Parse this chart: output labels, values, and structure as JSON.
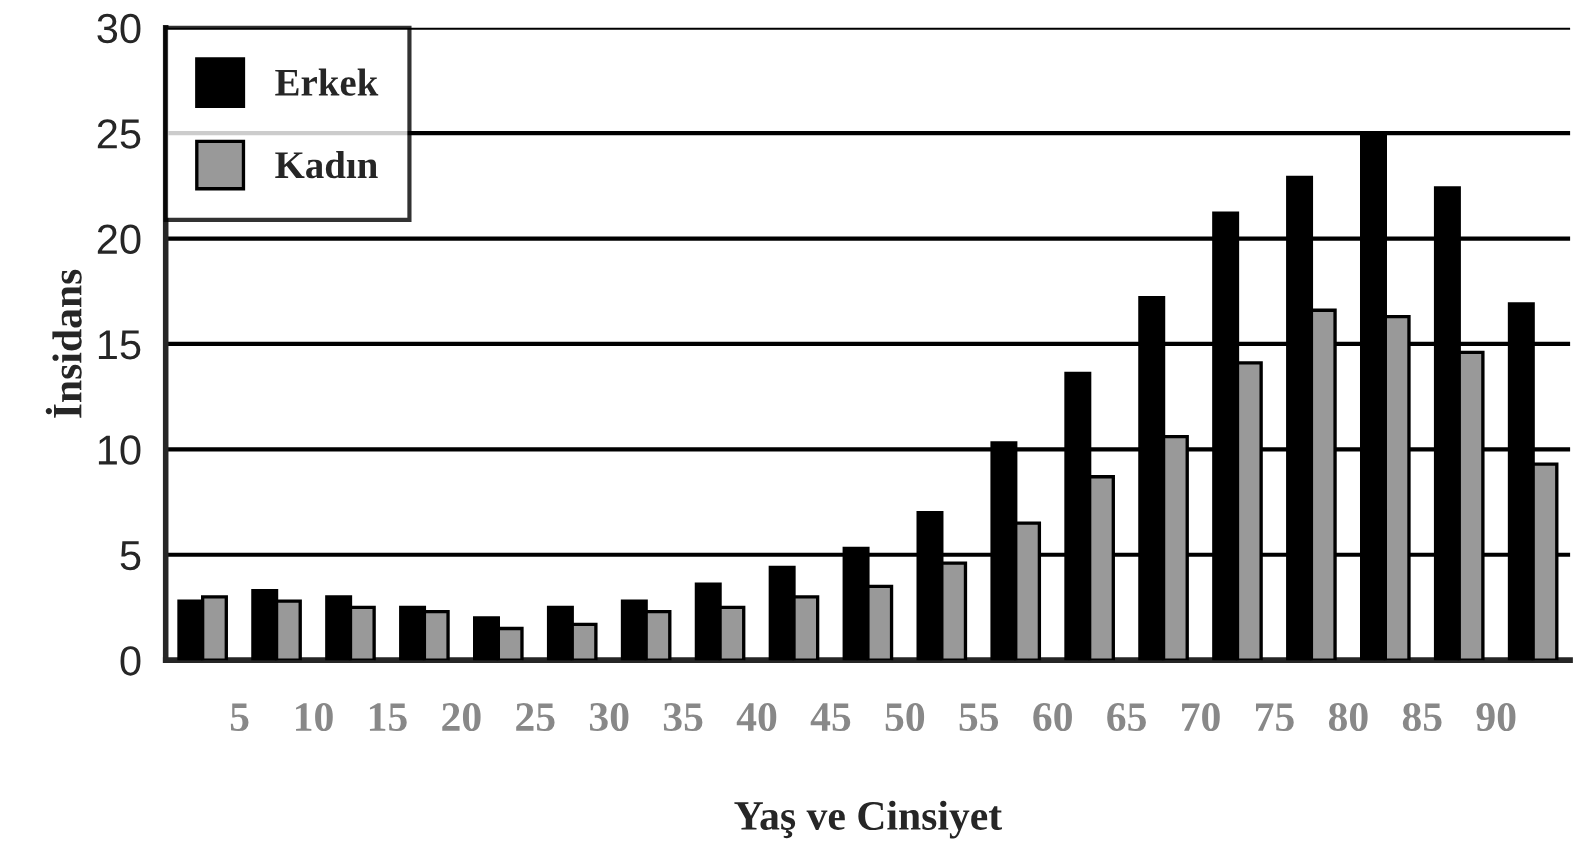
{
  "chart_data": {
    "type": "bar",
    "xlabel": "Yaş ve Cinsiyet",
    "ylabel": "İnsidans",
    "x": [
      2.5,
      7.5,
      12.5,
      17.5,
      22.5,
      27.5,
      32.5,
      37.5,
      42.5,
      47.5,
      52.5,
      57.5,
      62.5,
      67.5,
      72.5,
      77.5,
      82.5,
      87.5,
      92.5
    ],
    "series": [
      {
        "name": "Erkek",
        "color": "#000000",
        "values": [
          2.8,
          3.3,
          3.0,
          2.5,
          2.0,
          2.5,
          2.8,
          3.6,
          4.4,
          5.3,
          7.0,
          10.3,
          13.6,
          17.2,
          21.2,
          22.9,
          25.0,
          22.4,
          16.9
        ]
      },
      {
        "name": "Kadın",
        "color": "#999999",
        "values": [
          3.0,
          2.8,
          2.5,
          2.3,
          1.5,
          1.7,
          2.3,
          2.5,
          3.0,
          3.5,
          4.6,
          6.5,
          8.7,
          10.6,
          14.1,
          16.6,
          16.3,
          14.6,
          9.3
        ]
      }
    ],
    "xlim": [
      0,
      95
    ],
    "xticks": [
      5,
      10,
      15,
      20,
      25,
      30,
      35,
      40,
      45,
      50,
      55,
      60,
      65,
      70,
      75,
      80,
      85,
      90
    ],
    "ylim": [
      0,
      30
    ],
    "yticks": [
      0,
      5,
      10,
      15,
      20,
      25,
      30
    ],
    "grid": "y",
    "legend": "top left"
  }
}
